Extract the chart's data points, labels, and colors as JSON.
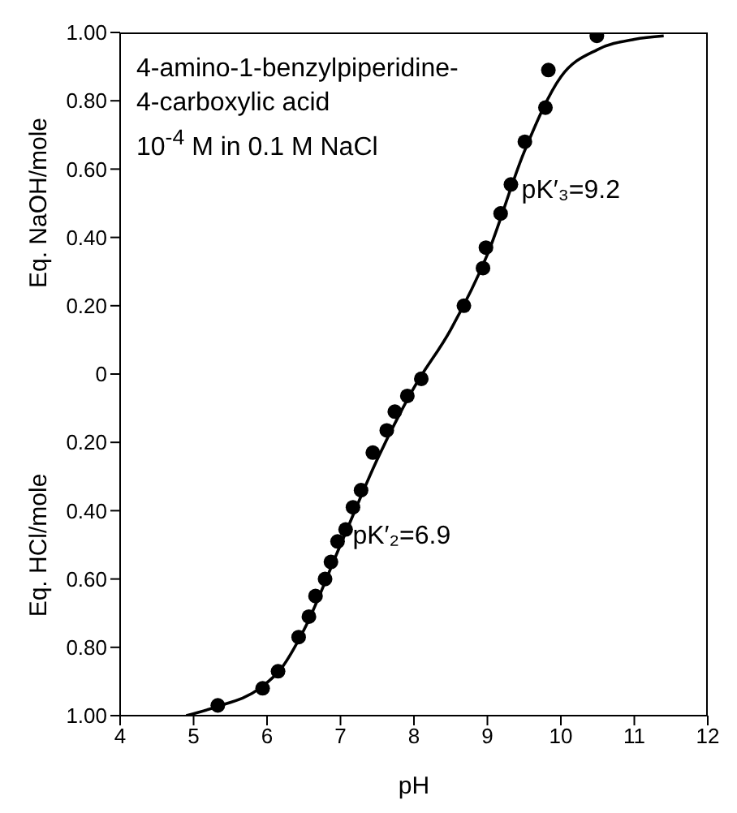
{
  "chart_data": {
    "type": "scatter",
    "title": "4-amino-1-benzylpiperidine-\n4-carboxylic acid",
    "subtitle": "10$^{-4}$ M in 0.1 M NaCl",
    "xlabel": "pH",
    "ylabel": "Eq. NaOH/mole",
    "annotations": [
      "Eq. HCl/mole",
      {
        "text": "pK′₃=9.2",
        "x": 9.2,
        "y": 0.48
      },
      {
        "text": "pK′₂=6.9",
        "x": 6.9,
        "y": -0.53
      }
    ],
    "marker": "circle",
    "grid": false,
    "xlim": [
      4,
      12
    ],
    "xticks": [
      4,
      5,
      6,
      7,
      8,
      9,
      10,
      11,
      12
    ],
    "ylim": [
      -1,
      1
    ],
    "yticks": [
      {
        "value": -1,
        "label": "1.00"
      },
      {
        "value": -0.8,
        "label": "0.80"
      },
      {
        "value": -0.6,
        "label": "0.60"
      },
      {
        "value": -0.4,
        "label": "0.40"
      },
      {
        "value": -0.2,
        "label": "0.20"
      },
      0,
      {
        "value": 0.2,
        "label": "0.20"
      },
      {
        "value": 0.4,
        "label": "0.40"
      },
      {
        "value": 0.6,
        "label": "0.60"
      },
      {
        "value": 0.8,
        "label": "0.80"
      },
      {
        "value": 1,
        "label": "1.00"
      }
    ],
    "series": [
      {
        "color": "#000000",
        "x": [
          5.33,
          5.94,
          6.15,
          6.43,
          6.57,
          6.66,
          6.79,
          6.87,
          6.96,
          7.07,
          7.17,
          7.28,
          7.44,
          7.63,
          7.74,
          7.91,
          8.1,
          8.68,
          8.94,
          8.98,
          9.18,
          9.32,
          9.51,
          9.79,
          9.83,
          10.49
        ],
        "values": [
          -0.97,
          -0.92,
          -0.87,
          -0.77,
          -0.71,
          -0.65,
          -0.6,
          -0.55,
          -0.49,
          -0.455,
          -0.39,
          -0.34,
          -0.23,
          -0.165,
          -0.11,
          -0.064,
          -0.014,
          0.2,
          0.31,
          0.37,
          0.47,
          0.555,
          0.68,
          0.78,
          0.89,
          0.99
        ]
      },
      {
        "type": "line",
        "color": "#000000",
        "marker": "none",
        "x": [
          4.9,
          5.3,
          5.9,
          6.2,
          6.5,
          7.0,
          7.5,
          8.0,
          8.5,
          9.0,
          9.5,
          10.0,
          10.5,
          11.0,
          11.4
        ],
        "values": [
          -1.0,
          -0.975,
          -0.92,
          -0.86,
          -0.75,
          -0.5,
          -0.25,
          -0.04,
          0.13,
          0.35,
          0.65,
          0.87,
          0.95,
          0.98,
          0.99
        ]
      }
    ]
  }
}
